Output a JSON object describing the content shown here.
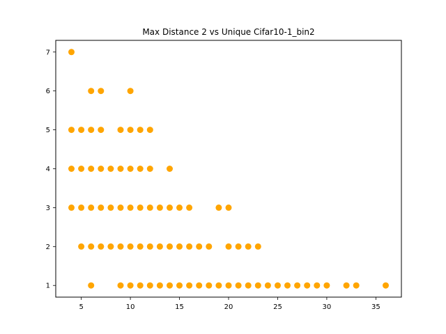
{
  "chart_data": {
    "type": "scatter",
    "title": "Max Distance 2 vs Unique Cifar10-1_bin2",
    "xlabel": "",
    "ylabel": "",
    "xlim": [
      2.4,
      37.6
    ],
    "ylim": [
      0.7,
      7.3
    ],
    "xticks": [
      5,
      10,
      15,
      20,
      25,
      30,
      35
    ],
    "yticks": [
      1,
      2,
      3,
      4,
      5,
      6,
      7
    ],
    "grid": false,
    "colors": {
      "point": "#FFA500",
      "axes": "#000000",
      "background": "#ffffff"
    },
    "series": [
      {
        "points": [
          [
            4,
            7
          ],
          [
            6,
            6
          ],
          [
            7,
            6
          ],
          [
            10,
            6
          ],
          [
            4,
            5
          ],
          [
            5,
            5
          ],
          [
            6,
            5
          ],
          [
            7,
            5
          ],
          [
            9,
            5
          ],
          [
            10,
            5
          ],
          [
            11,
            5
          ],
          [
            12,
            5
          ],
          [
            4,
            4
          ],
          [
            5,
            4
          ],
          [
            6,
            4
          ],
          [
            7,
            4
          ],
          [
            8,
            4
          ],
          [
            9,
            4
          ],
          [
            10,
            4
          ],
          [
            11,
            4
          ],
          [
            12,
            4
          ],
          [
            14,
            4
          ],
          [
            4,
            3
          ],
          [
            5,
            3
          ],
          [
            6,
            3
          ],
          [
            7,
            3
          ],
          [
            8,
            3
          ],
          [
            9,
            3
          ],
          [
            10,
            3
          ],
          [
            11,
            3
          ],
          [
            12,
            3
          ],
          [
            13,
            3
          ],
          [
            14,
            3
          ],
          [
            15,
            3
          ],
          [
            16,
            3
          ],
          [
            19,
            3
          ],
          [
            20,
            3
          ],
          [
            5,
            2
          ],
          [
            6,
            2
          ],
          [
            7,
            2
          ],
          [
            8,
            2
          ],
          [
            9,
            2
          ],
          [
            10,
            2
          ],
          [
            11,
            2
          ],
          [
            12,
            2
          ],
          [
            13,
            2
          ],
          [
            14,
            2
          ],
          [
            15,
            2
          ],
          [
            16,
            2
          ],
          [
            17,
            2
          ],
          [
            18,
            2
          ],
          [
            20,
            2
          ],
          [
            21,
            2
          ],
          [
            22,
            2
          ],
          [
            23,
            2
          ],
          [
            6,
            1
          ],
          [
            9,
            1
          ],
          [
            10,
            1
          ],
          [
            11,
            1
          ],
          [
            12,
            1
          ],
          [
            13,
            1
          ],
          [
            14,
            1
          ],
          [
            15,
            1
          ],
          [
            16,
            1
          ],
          [
            17,
            1
          ],
          [
            18,
            1
          ],
          [
            19,
            1
          ],
          [
            20,
            1
          ],
          [
            21,
            1
          ],
          [
            22,
            1
          ],
          [
            23,
            1
          ],
          [
            24,
            1
          ],
          [
            25,
            1
          ],
          [
            26,
            1
          ],
          [
            27,
            1
          ],
          [
            28,
            1
          ],
          [
            29,
            1
          ],
          [
            30,
            1
          ],
          [
            32,
            1
          ],
          [
            33,
            1
          ],
          [
            36,
            1
          ]
        ]
      }
    ]
  }
}
